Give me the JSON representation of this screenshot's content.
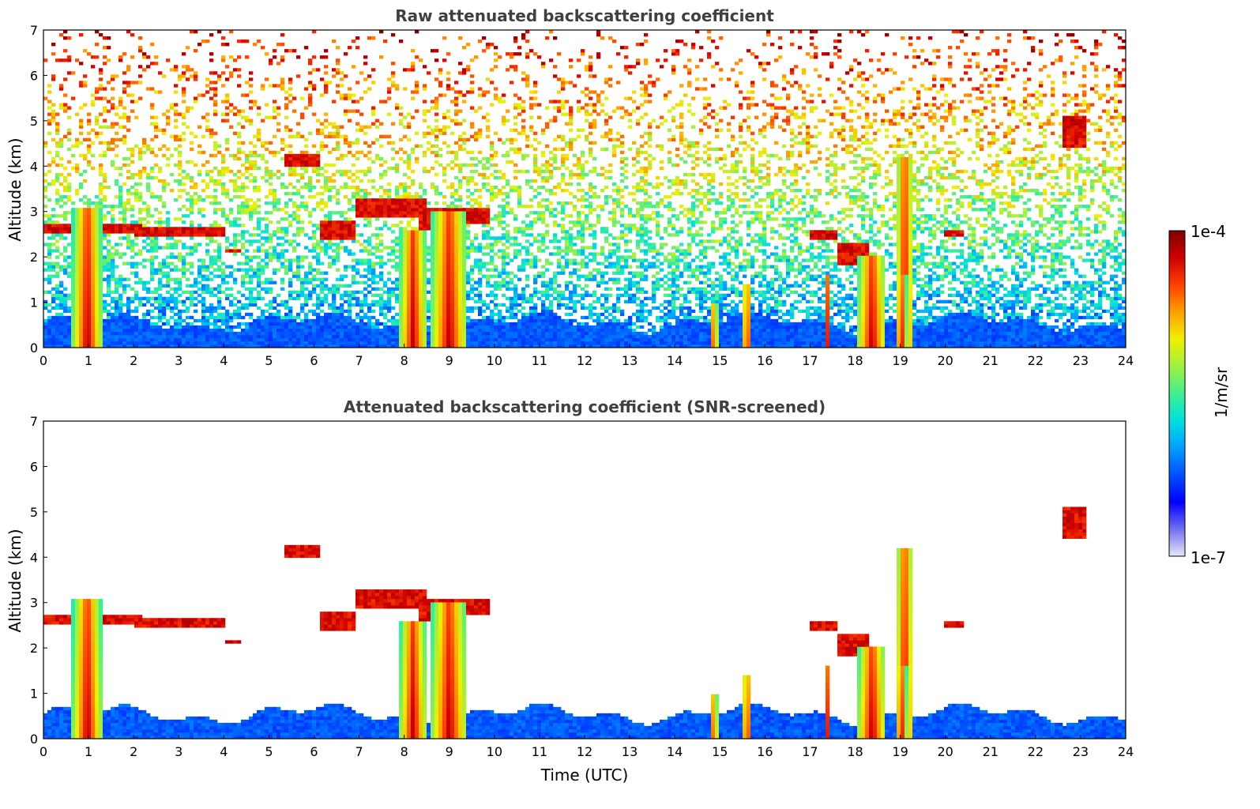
{
  "chart_data": [
    {
      "type": "heatmap",
      "title": "Raw attenuated backscattering coefficient",
      "xlabel": "",
      "ylabel": "Altitude (km)",
      "xlim": [
        0,
        24
      ],
      "ylim": [
        0,
        7
      ],
      "xticks": [
        "0",
        "1",
        "2",
        "3",
        "4",
        "5",
        "6",
        "7",
        "8",
        "9",
        "10",
        "11",
        "12",
        "13",
        "14",
        "15",
        "16",
        "17",
        "18",
        "19",
        "20",
        "21",
        "22",
        "23",
        "24"
      ],
      "yticks": [
        "0",
        "1",
        "2",
        "3",
        "4",
        "5",
        "6",
        "7"
      ],
      "screened": false,
      "cloud_layers": [
        {
          "t0": 0.0,
          "t1": 2.2,
          "h0": 2.55,
          "h1": 2.75
        },
        {
          "t0": 2.0,
          "t1": 4.0,
          "h0": 2.45,
          "h1": 2.65
        },
        {
          "t0": 4.0,
          "t1": 4.4,
          "h0": 2.08,
          "h1": 2.2
        },
        {
          "t0": 5.3,
          "t1": 6.1,
          "h0": 4.0,
          "h1": 4.3
        },
        {
          "t0": 6.1,
          "t1": 6.9,
          "h0": 2.4,
          "h1": 2.8
        },
        {
          "t0": 6.9,
          "t1": 8.5,
          "h0": 2.9,
          "h1": 3.3
        },
        {
          "t0": 8.3,
          "t1": 9.0,
          "h0": 2.6,
          "h1": 3.1
        },
        {
          "t0": 9.0,
          "t1": 9.9,
          "h0": 2.75,
          "h1": 3.05
        },
        {
          "t0": 17.0,
          "t1": 17.6,
          "h0": 2.4,
          "h1": 2.6
        },
        {
          "t0": 17.6,
          "t1": 18.3,
          "h0": 1.8,
          "h1": 2.3
        },
        {
          "t0": 20.0,
          "t1": 20.4,
          "h0": 2.45,
          "h1": 2.6
        },
        {
          "t0": 22.6,
          "t1": 23.1,
          "h0": 4.4,
          "h1": 5.1
        }
      ],
      "precip_columns": [
        {
          "t0": 0.65,
          "t1": 1.3,
          "top": 3.1
        },
        {
          "t0": 7.9,
          "t1": 8.5,
          "top": 2.6
        },
        {
          "t0": 8.6,
          "t1": 9.4,
          "top": 3.0
        },
        {
          "t0": 14.8,
          "t1": 14.95,
          "top": 1.0
        },
        {
          "t0": 15.5,
          "t1": 15.7,
          "top": 1.4
        },
        {
          "t0": 17.3,
          "t1": 17.45,
          "top": 1.6
        },
        {
          "t0": 18.05,
          "t1": 18.7,
          "top": 2.0
        },
        {
          "t0": 18.9,
          "t1": 19.15,
          "top": 1.6
        },
        {
          "t0": 18.9,
          "t1": 19.3,
          "top": 4.2
        }
      ]
    },
    {
      "type": "heatmap",
      "title": "Attenuated backscattering coefficient (SNR-screened)",
      "xlabel": "Time (UTC)",
      "ylabel": "Altitude (km)",
      "xlim": [
        0,
        24
      ],
      "ylim": [
        0,
        7
      ],
      "xticks": [
        "0",
        "1",
        "2",
        "3",
        "4",
        "5",
        "6",
        "7",
        "8",
        "9",
        "10",
        "11",
        "12",
        "13",
        "14",
        "15",
        "16",
        "17",
        "18",
        "19",
        "20",
        "21",
        "22",
        "23",
        "24"
      ],
      "yticks": [
        "0",
        "1",
        "2",
        "3",
        "4",
        "5",
        "6",
        "7"
      ],
      "screened": true
    }
  ],
  "colorbar": {
    "label": "1/m/sr",
    "max_label": "1e-4",
    "min_label": "1e-7",
    "scale": "log",
    "range": [
      1e-07,
      0.0001
    ],
    "colors": [
      "#e8e8f8",
      "#7070f0",
      "#0000ff",
      "#0050ff",
      "#00a0ff",
      "#00e0e0",
      "#40f090",
      "#a0f040",
      "#f0f000",
      "#ffa000",
      "#ff4000",
      "#d00000",
      "#800000"
    ]
  }
}
